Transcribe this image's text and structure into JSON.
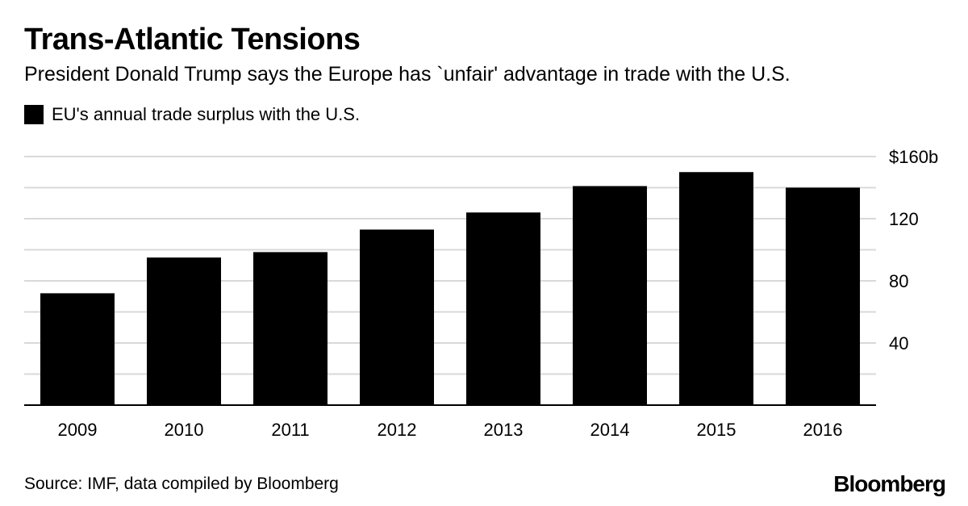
{
  "chart_data": {
    "type": "bar",
    "title": "Trans-Atlantic Tensions",
    "subtitle": "President Donald Trump says the Europe has `unfair' advantage in trade with the U.S.",
    "legend": [
      "EU's annual trade surplus with the U.S."
    ],
    "categories": [
      "2009",
      "2010",
      "2011",
      "2012",
      "2013",
      "2014",
      "2015",
      "2016"
    ],
    "series": [
      {
        "name": "EU's annual trade surplus with the U.S.",
        "values": [
          72,
          95,
          98.5,
          113,
          124,
          141,
          150,
          140
        ]
      }
    ],
    "ylim": [
      0,
      160
    ],
    "y_ticks": [
      40,
      80,
      120,
      160
    ],
    "y_tick_labels": [
      "40",
      "80",
      "120",
      "$160b"
    ],
    "grid_step": 20,
    "color": "#000000",
    "xlabel": "",
    "ylabel": ""
  },
  "source": "Source: IMF, data compiled by Bloomberg",
  "brand": "Bloomberg"
}
